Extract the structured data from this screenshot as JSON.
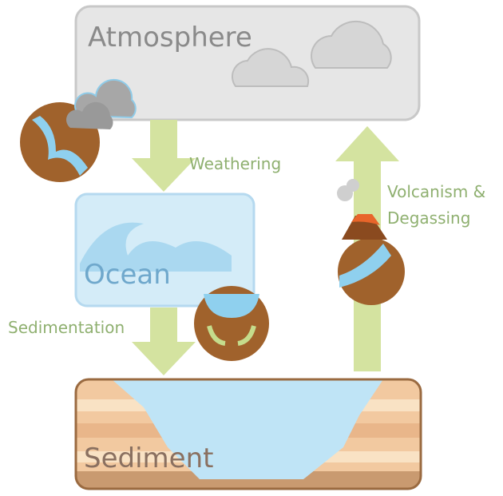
{
  "nodes": [
    {
      "label": "Atmosphere"
    },
    {
      "label": "Ocean"
    },
    {
      "label": "Sediment"
    }
  ],
  "edges": [
    {
      "label": "Weathering"
    },
    {
      "label": "Sedimentation"
    },
    {
      "label_lines": [
        "Volcanism &",
        "Degassing"
      ]
    }
  ]
}
